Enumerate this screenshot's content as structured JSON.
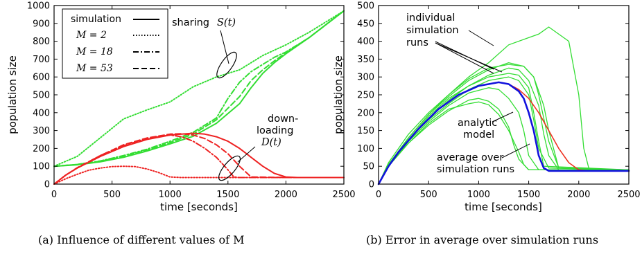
{
  "colors": {
    "sharing": "#33dd33",
    "downloading": "#ee2222",
    "runs": "#33dd33",
    "analytic": "#ee3322",
    "average": "#1111dd"
  },
  "captions": {
    "a": "(a) Influence of different values of M",
    "b": "(b) Error in average over simulation runs"
  },
  "chart_data": [
    {
      "type": "line",
      "xlabel": "time [seconds]",
      "ylabel": "population size",
      "xlim": [
        0,
        2500
      ],
      "ylim": [
        0,
        1000
      ],
      "xticks": [
        "0",
        "500",
        "1000",
        "1500",
        "2000",
        "2500"
      ],
      "yticks": [
        "0",
        "100",
        "200",
        "300",
        "400",
        "500",
        "600",
        "700",
        "800",
        "900",
        "1000"
      ],
      "legend": {
        "position": "top-left",
        "entries": [
          {
            "label": "simulation",
            "style": "solid"
          },
          {
            "label": "M = 2",
            "style": "dotted"
          },
          {
            "label": "M = 18",
            "style": "dash-dot"
          },
          {
            "label": "M = 53",
            "style": "dashed"
          }
        ]
      },
      "annotations": {
        "sharing": "sharing",
        "sharing_sym": "S(t)",
        "down1": "down-",
        "down2": "loading",
        "down_sym": "D(t)"
      },
      "series": [
        {
          "group": "sharing",
          "style": "solid",
          "x": [
            0,
            200,
            400,
            600,
            800,
            1000,
            1200,
            1400,
            1600,
            1700,
            1800,
            1900,
            2000,
            2200,
            2500
          ],
          "y": [
            100,
            108,
            125,
            150,
            185,
            225,
            268,
            340,
            450,
            540,
            620,
            680,
            730,
            820,
            970
          ]
        },
        {
          "group": "sharing",
          "style": "dotted",
          "x": [
            0,
            200,
            400,
            600,
            800,
            1000,
            1200,
            1400,
            1600,
            1800,
            2000,
            2200,
            2500
          ],
          "y": [
            100,
            155,
            260,
            365,
            415,
            460,
            545,
            600,
            640,
            720,
            780,
            850,
            970
          ]
        },
        {
          "group": "sharing",
          "style": "dash-dot",
          "x": [
            0,
            200,
            400,
            600,
            800,
            1000,
            1200,
            1400,
            1500,
            1600,
            1700,
            1800,
            1900,
            2000,
            2200,
            2500
          ],
          "y": [
            100,
            110,
            130,
            160,
            195,
            240,
            290,
            370,
            480,
            570,
            630,
            670,
            710,
            740,
            820,
            970
          ]
        },
        {
          "group": "sharing",
          "style": "dashed",
          "x": [
            0,
            200,
            400,
            600,
            800,
            1000,
            1200,
            1400,
            1600,
            1700,
            1800,
            1900,
            2000,
            2200,
            2500
          ],
          "y": [
            100,
            110,
            128,
            155,
            190,
            232,
            280,
            360,
            490,
            580,
            640,
            690,
            735,
            820,
            970
          ]
        },
        {
          "group": "downloading",
          "style": "solid",
          "x": [
            0,
            100,
            200,
            400,
            600,
            800,
            1000,
            1200,
            1300,
            1400,
            1500,
            1600,
            1650,
            1700,
            1800,
            1900,
            2000,
            2100,
            2500
          ],
          "y": [
            0,
            50,
            90,
            155,
            210,
            250,
            275,
            285,
            280,
            265,
            240,
            200,
            175,
            150,
            100,
            60,
            40,
            37,
            37
          ]
        },
        {
          "group": "downloading",
          "style": "dotted",
          "x": [
            0,
            100,
            200,
            300,
            400,
            500,
            600,
            700,
            800,
            900,
            1000,
            1100,
            1500,
            2000,
            2500
          ],
          "y": [
            0,
            30,
            55,
            78,
            90,
            98,
            100,
            98,
            85,
            65,
            40,
            37,
            37,
            37,
            37
          ]
        },
        {
          "group": "downloading",
          "style": "dash-dot",
          "x": [
            0,
            100,
            200,
            400,
            600,
            800,
            1000,
            1100,
            1200,
            1300,
            1400,
            1500,
            1550,
            1600,
            2000,
            2500
          ],
          "y": [
            0,
            50,
            90,
            160,
            215,
            255,
            275,
            265,
            240,
            200,
            150,
            80,
            40,
            37,
            37,
            37
          ]
        },
        {
          "group": "downloading",
          "style": "dashed",
          "x": [
            0,
            100,
            200,
            400,
            600,
            800,
            1000,
            1100,
            1200,
            1300,
            1400,
            1500,
            1600,
            1700,
            2000,
            2500
          ],
          "y": [
            0,
            50,
            92,
            160,
            220,
            258,
            280,
            282,
            275,
            255,
            220,
            170,
            100,
            40,
            37,
            37
          ]
        }
      ]
    },
    {
      "type": "line",
      "xlabel": "time [seconds]",
      "ylabel": "population size",
      "xlim": [
        0,
        2500
      ],
      "ylim": [
        0,
        500
      ],
      "xticks": [
        "0",
        "500",
        "1000",
        "1500",
        "2000",
        "2500"
      ],
      "yticks": [
        "0",
        "50",
        "100",
        "150",
        "200",
        "250",
        "300",
        "350",
        "400",
        "450",
        "500"
      ],
      "annotations": {
        "runs1": "individual",
        "runs2": "simulation",
        "runs3": "runs",
        "analytic1": "analytic",
        "analytic2": "model",
        "avg1": "average over",
        "avg2": "simulation runs"
      },
      "series": [
        {
          "group": "run",
          "x": [
            0,
            100,
            300,
            500,
            700,
            900,
            1100,
            1300,
            1500,
            1600,
            1700,
            1900,
            2000,
            2050,
            2100,
            2200,
            2500
          ],
          "y": [
            0,
            60,
            140,
            200,
            250,
            300,
            340,
            390,
            410,
            420,
            440,
            400,
            250,
            100,
            45,
            40,
            40
          ]
        },
        {
          "group": "run",
          "x": [
            0,
            100,
            300,
            500,
            700,
            900,
            1100,
            1300,
            1450,
            1550,
            1650,
            1700,
            1800,
            2500
          ],
          "y": [
            0,
            55,
            130,
            195,
            245,
            290,
            320,
            340,
            330,
            300,
            220,
            150,
            45,
            40
          ]
        },
        {
          "group": "run",
          "x": [
            0,
            100,
            300,
            500,
            700,
            900,
            1100,
            1300,
            1400,
            1500,
            1600,
            1650,
            1700,
            1800,
            2500
          ],
          "y": [
            0,
            55,
            125,
            185,
            235,
            275,
            305,
            325,
            320,
            290,
            220,
            140,
            80,
            40,
            40
          ]
        },
        {
          "group": "run",
          "x": [
            0,
            100,
            300,
            500,
            700,
            900,
            1100,
            1300,
            1400,
            1500,
            1550,
            1600,
            1700,
            2500
          ],
          "y": [
            0,
            55,
            125,
            180,
            225,
            265,
            290,
            300,
            290,
            250,
            180,
            100,
            45,
            40
          ]
        },
        {
          "group": "run",
          "x": [
            0,
            100,
            300,
            500,
            700,
            900,
            1100,
            1200,
            1300,
            1400,
            1450,
            1500,
            1600,
            2500
          ],
          "y": [
            0,
            50,
            120,
            175,
            220,
            255,
            270,
            265,
            240,
            200,
            150,
            80,
            40,
            40
          ]
        },
        {
          "group": "run",
          "x": [
            0,
            100,
            300,
            500,
            700,
            900,
            1000,
            1100,
            1200,
            1300,
            1350,
            1400,
            1500,
            2500
          ],
          "y": [
            0,
            50,
            115,
            165,
            205,
            235,
            240,
            232,
            210,
            160,
            110,
            70,
            40,
            40
          ]
        },
        {
          "group": "run",
          "x": [
            0,
            100,
            300,
            500,
            700,
            900,
            1000,
            1100,
            1200,
            1300,
            1400,
            1450,
            1500,
            2500
          ],
          "y": [
            0,
            50,
            115,
            170,
            210,
            225,
            230,
            222,
            195,
            150,
            90,
            55,
            40,
            40
          ]
        },
        {
          "group": "run",
          "x": [
            0,
            100,
            300,
            500,
            700,
            900,
            1100,
            1300,
            1400,
            1500,
            1550,
            1600,
            1650,
            2500
          ],
          "y": [
            0,
            55,
            125,
            190,
            240,
            275,
            300,
            310,
            305,
            270,
            200,
            120,
            50,
            40
          ]
        },
        {
          "group": "run",
          "x": [
            0,
            100,
            300,
            500,
            700,
            900,
            1100,
            1300,
            1450,
            1550,
            1600,
            1700,
            1800,
            2500
          ],
          "y": [
            0,
            55,
            130,
            195,
            250,
            295,
            325,
            335,
            330,
            300,
            250,
            120,
            45,
            40
          ]
        },
        {
          "group": "analytic",
          "x": [
            0,
            100,
            200,
            400,
            600,
            800,
            1000,
            1200,
            1300,
            1400,
            1500,
            1600,
            1650,
            1700,
            1800,
            1900,
            2000,
            2100,
            2500
          ],
          "y": [
            0,
            50,
            90,
            155,
            210,
            250,
            275,
            285,
            280,
            265,
            240,
            200,
            175,
            150,
            100,
            60,
            40,
            37,
            37
          ]
        },
        {
          "group": "average",
          "x": [
            0,
            100,
            200,
            400,
            600,
            800,
            1000,
            1200,
            1300,
            1400,
            1450,
            1500,
            1550,
            1600,
            1650,
            1700,
            2500
          ],
          "y": [
            0,
            50,
            90,
            155,
            210,
            250,
            275,
            285,
            280,
            260,
            240,
            200,
            150,
            80,
            45,
            37,
            37
          ]
        }
      ]
    }
  ]
}
